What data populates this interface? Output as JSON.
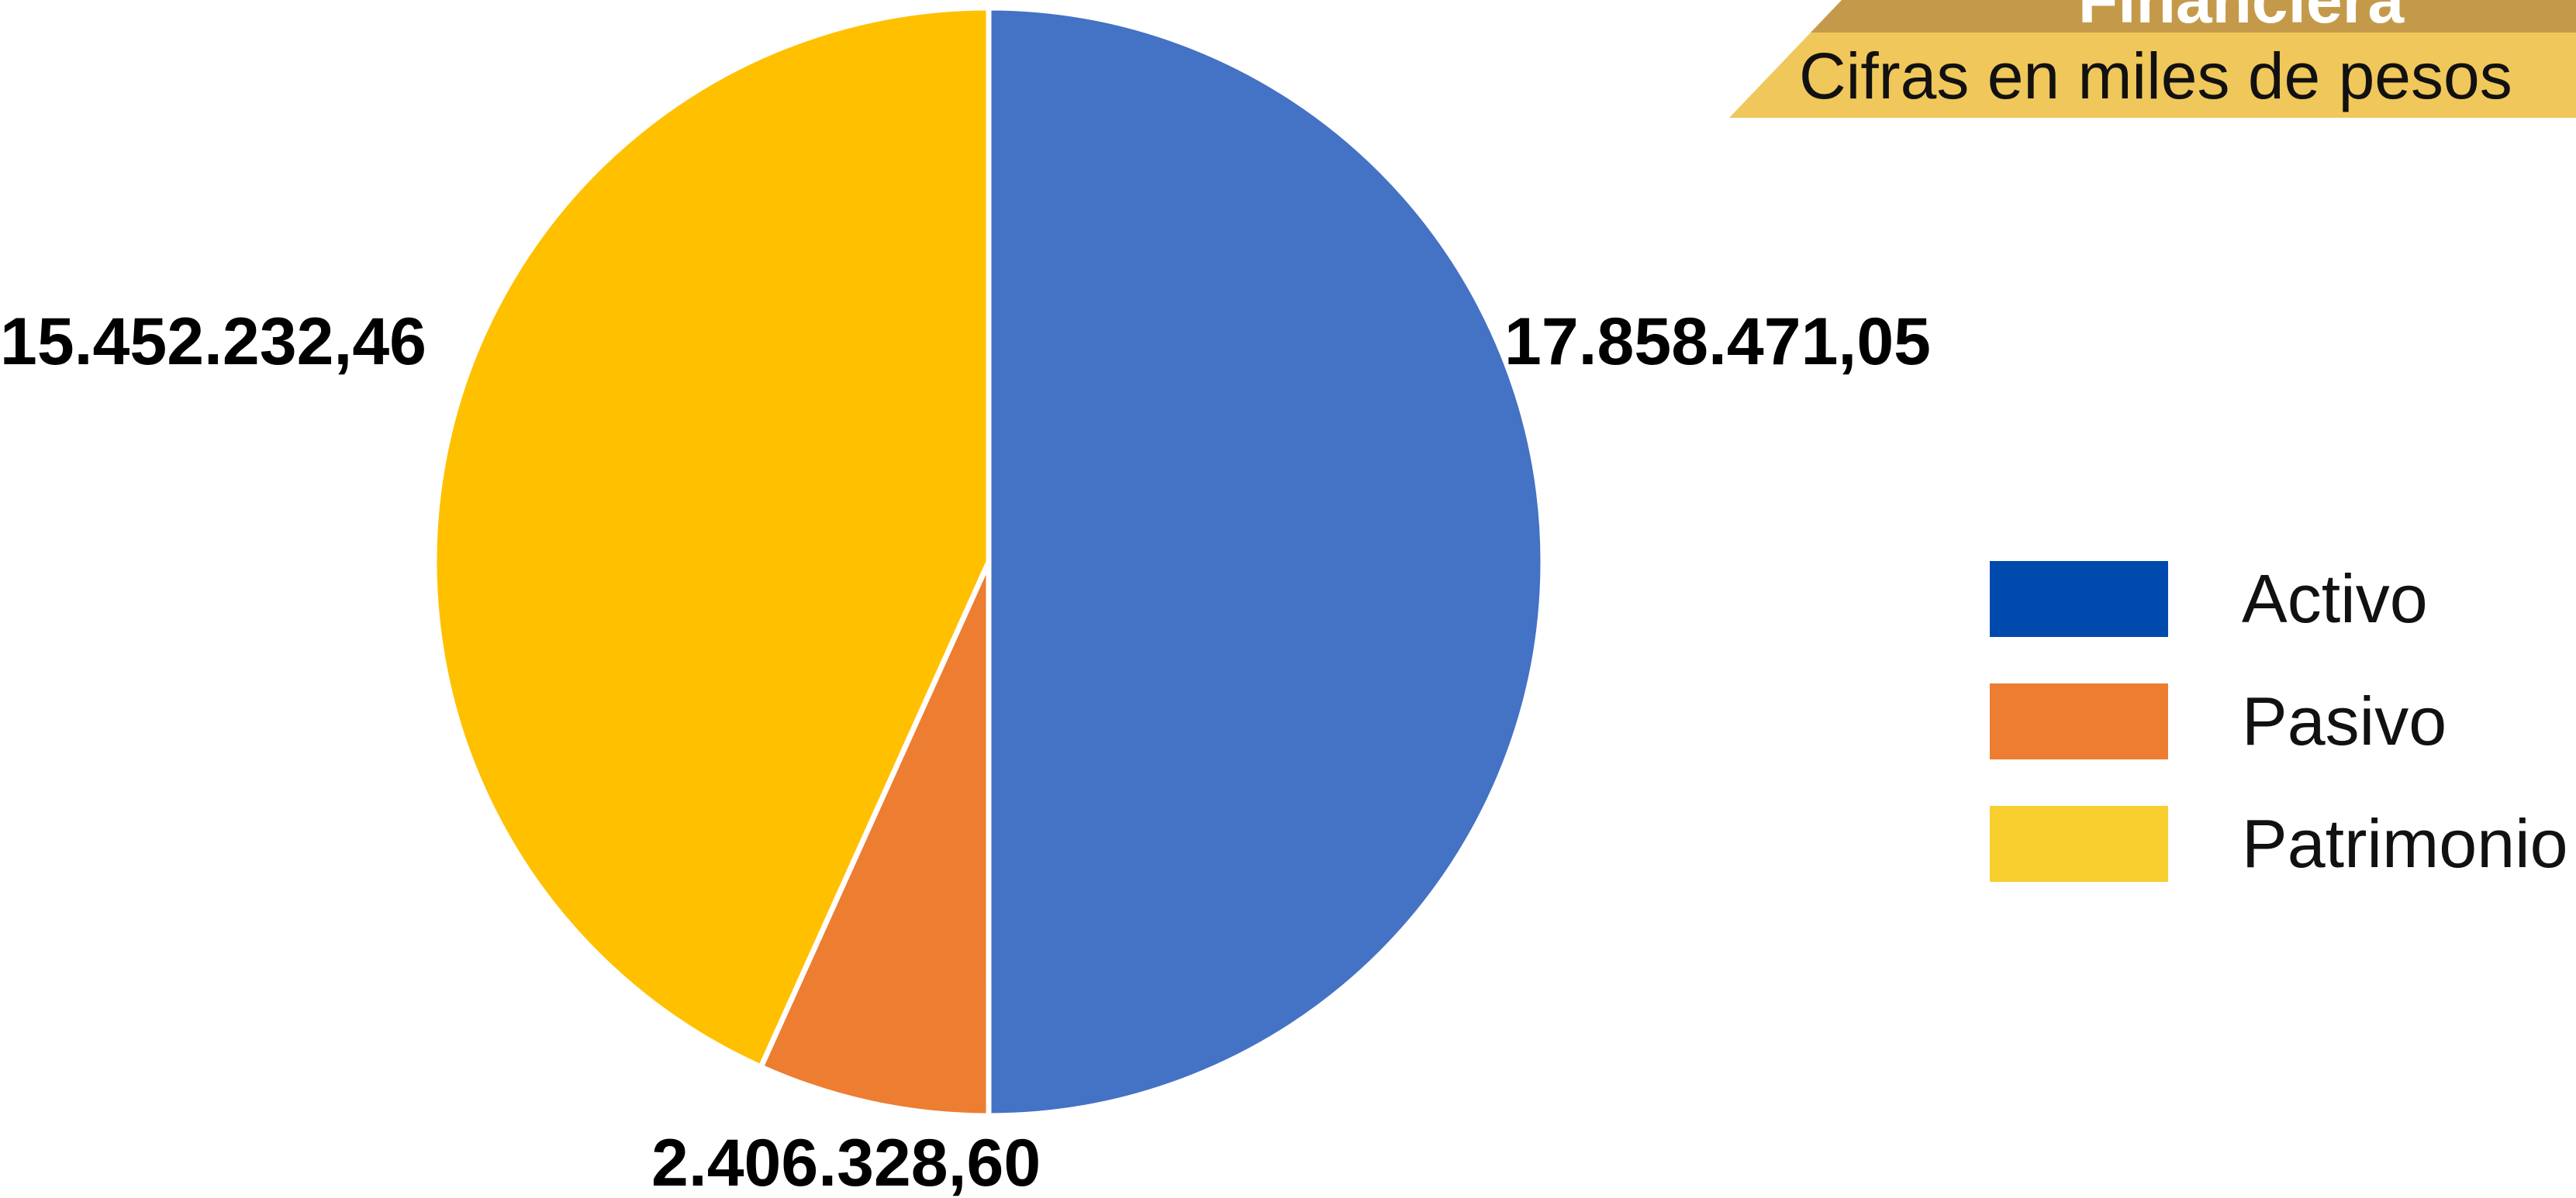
{
  "header": {
    "title": "Financiera",
    "subtitle": "Cifras en miles de pesos",
    "title_band_color": "#C49A4A",
    "subtitle_band_color": "#F0C75A"
  },
  "chart_data": {
    "type": "pie",
    "title": "",
    "slices": [
      {
        "label": "Activo",
        "value": 17858471.05,
        "display": "17.858.471,05",
        "color": "#4472C4",
        "legend_color": "#004AAD"
      },
      {
        "label": "Pasivo",
        "value": 2406328.6,
        "display": "2.406.328,60",
        "color": "#ED7D31",
        "legend_color": "#ED7D31"
      },
      {
        "label": "Patrimonio",
        "value": 15452232.46,
        "display": "15.452.232,46",
        "color": "#FFC000",
        "legend_color": "#F7CE2E"
      }
    ],
    "legend_position": "right",
    "start_angle_deg": 0,
    "direction": "clockwise"
  }
}
